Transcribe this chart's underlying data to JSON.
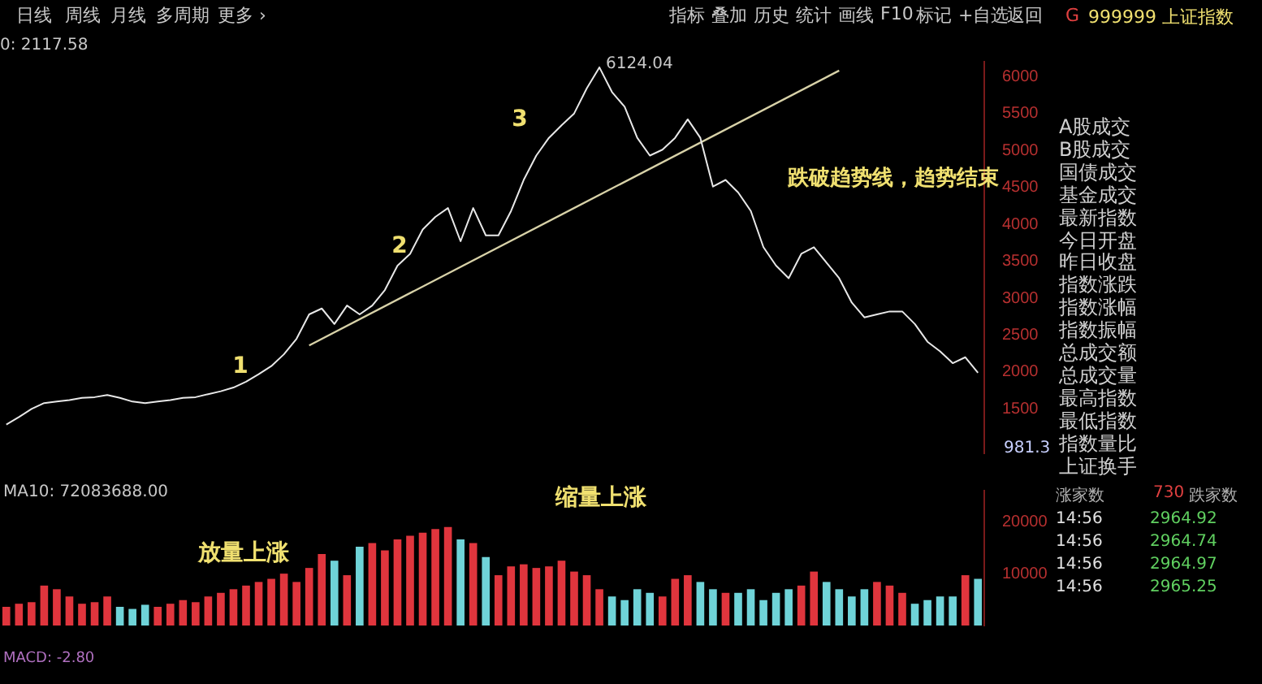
{
  "chart_data": [
    {
      "type": "other",
      "annotations": [
        "日线",
        "周线",
        "月线",
        "多周期",
        "更多 ›",
        "指标",
        "叠加",
        "历史",
        "统计",
        "画线",
        "F10",
        "标记",
        "+自选",
        "返回"
      ]
    },
    {
      "type": "line",
      "categories": [
        null,
        null,
        null,
        null,
        null,
        null,
        null,
        null,
        null,
        null,
        null,
        null,
        null,
        null,
        null,
        null,
        null,
        null,
        null,
        null,
        null,
        null,
        null,
        null,
        null,
        null,
        null,
        null,
        null,
        null,
        null,
        null,
        null,
        null,
        null,
        null,
        null,
        null,
        null,
        null,
        null,
        null,
        null,
        null,
        null,
        null,
        null,
        null,
        null,
        null,
        null,
        null,
        null,
        null,
        null,
        null,
        null,
        null,
        null,
        null,
        null,
        null,
        null,
        null,
        null,
        null,
        null,
        null,
        null,
        null,
        null,
        null,
        null,
        null,
        null,
        null,
        null,
        null
      ],
      "series": [
        {
          "color": "#e8e8e8",
          "values": [
            1290,
            1390,
            1500,
            1580,
            1600,
            1620,
            1650,
            1660,
            1690,
            1650,
            1600,
            1580,
            1600,
            1620,
            1650,
            1660,
            1700,
            1740,
            1790,
            1870,
            1970,
            2080,
            2240,
            2450,
            2780,
            2860,
            2650,
            2900,
            2780,
            2900,
            3110,
            3440,
            3600,
            3930,
            4100,
            4220,
            3770,
            4220,
            3850,
            3850,
            4180,
            4600,
            4930,
            5170,
            5340,
            5500,
            5840,
            6124,
            5790,
            5590,
            5170,
            4930,
            5010,
            5170,
            5420,
            5170,
            4510,
            4600,
            4430,
            4180,
            3690,
            3440,
            3270,
            3600,
            3690,
            3480,
            3270,
            2940,
            2740,
            2780,
            2820,
            2820,
            2650,
            2410,
            2280,
            2120,
            2200,
            1990
          ]
        },
        {
          "type": "line",
          "color": "#d8d2a8",
          "values": [
            null,
            null,
            null,
            null,
            null,
            null,
            null,
            null,
            null,
            null,
            null,
            null,
            null,
            null,
            null,
            null,
            null,
            null,
            null,
            null,
            null,
            null,
            null,
            null,
            2360,
            null,
            null,
            null,
            null,
            null,
            null,
            null,
            null,
            null,
            null,
            null,
            null,
            null,
            null,
            null,
            null,
            null,
            null,
            null,
            null,
            null,
            null,
            null,
            null,
            null,
            null,
            null,
            null,
            null,
            null,
            null,
            null,
            null,
            null,
            null,
            null,
            null,
            null,
            null,
            null,
            null,
            6080,
            null,
            null,
            null,
            null,
            null,
            null,
            null,
            null,
            null,
            null,
            null
          ]
        }
      ],
      "ylim": [
        900,
        6200
      ],
      "yticks": [
        1500,
        2000,
        2500,
        3000,
        3500,
        4000,
        4500,
        5000,
        5500,
        6000
      ],
      "tick_labels": "y",
      "grid": false,
      "legend": false,
      "annotations": [
        "0: 2117.58",
        "6124.04",
        "1",
        "2",
        "3",
        "跌破趋势线，趋势结束",
        "981.3"
      ]
    },
    {
      "type": "bar",
      "categories": [
        null,
        null,
        null,
        null,
        null,
        null,
        null,
        null,
        null,
        null,
        null,
        null,
        null,
        null,
        null,
        null,
        null,
        null,
        null,
        null,
        null,
        null,
        null,
        null,
        null,
        null,
        null,
        null,
        null,
        null,
        null,
        null,
        null,
        null,
        null,
        null,
        null,
        null,
        null,
        null,
        null,
        null,
        null,
        null,
        null,
        null,
        null,
        null,
        null,
        null,
        null,
        null,
        null,
        null,
        null,
        null,
        null,
        null,
        null,
        null,
        null,
        null,
        null,
        null,
        null,
        null,
        null,
        null,
        null,
        null,
        null,
        null,
        null,
        null,
        null,
        null,
        null,
        null
      ],
      "values": [
        3600,
        4200,
        4500,
        7700,
        7000,
        5600,
        4200,
        4500,
        5600,
        3600,
        3200,
        4000,
        3600,
        4200,
        4900,
        4500,
        5600,
        6300,
        7000,
        7700,
        8400,
        9000,
        10000,
        8400,
        11100,
        13800,
        12500,
        9700,
        15200,
        15900,
        14500,
        16600,
        17300,
        17900,
        18600,
        19000,
        16600,
        15900,
        13200,
        9700,
        11400,
        11800,
        11100,
        11400,
        12500,
        10400,
        9700,
        7000,
        5600,
        4900,
        7000,
        6300,
        5600,
        9000,
        9700,
        8400,
        7000,
        6300,
        6300,
        7000,
        4900,
        6300,
        7000,
        7700,
        10400,
        8400,
        7000,
        5600,
        7000,
        8400,
        7700,
        6300,
        4200,
        4900,
        5600,
        5600,
        9700,
        9000
      ],
      "colors": [
        "#e0353d",
        "#e0353d",
        "#e0353d",
        "#e0353d",
        "#e0353d",
        "#e0353d",
        "#e0353d",
        "#e0353d",
        "#e0353d",
        "#6fd3d8",
        "#6fd3d8",
        "#6fd3d8",
        "#e0353d",
        "#e0353d",
        "#e0353d",
        "#e0353d",
        "#e0353d",
        "#e0353d",
        "#e0353d",
        "#e0353d",
        "#e0353d",
        "#e0353d",
        "#e0353d",
        "#e0353d",
        "#e0353d",
        "#e0353d",
        "#6fd3d8",
        "#e0353d",
        "#6fd3d8",
        "#e0353d",
        "#e0353d",
        "#e0353d",
        "#e0353d",
        "#e0353d",
        "#e0353d",
        "#e0353d",
        "#6fd3d8",
        "#e0353d",
        "#6fd3d8",
        "#e0353d",
        "#e0353d",
        "#e0353d",
        "#e0353d",
        "#e0353d",
        "#e0353d",
        "#e0353d",
        "#e0353d",
        "#e0353d",
        "#6fd3d8",
        "#6fd3d8",
        "#6fd3d8",
        "#6fd3d8",
        "#e0353d",
        "#e0353d",
        "#e0353d",
        "#6fd3d8",
        "#6fd3d8",
        "#e0353d",
        "#6fd3d8",
        "#6fd3d8",
        "#6fd3d8",
        "#6fd3d8",
        "#6fd3d8",
        "#e0353d",
        "#e0353d",
        "#6fd3d8",
        "#6fd3d8",
        "#6fd3d8",
        "#6fd3d8",
        "#e0353d",
        "#e0353d",
        "#e0353d",
        "#6fd3d8",
        "#6fd3d8",
        "#6fd3d8",
        "#6fd3d8",
        "#e0353d",
        "#6fd3d8"
      ],
      "ylim": [
        0,
        26000
      ],
      "yticks": [
        10000,
        20000
      ],
      "tick_labels": "y",
      "grid": false,
      "legend": false,
      "annotations": [
        "MA10: 72083688.00",
        "放量上涨",
        "缩量上涨",
        "MACD: -2.80"
      ]
    },
    {
      "type": "other",
      "title": "999999 上证指数",
      "annotations": [
        "G",
        "A股成交",
        "B股成交",
        "国债成交",
        "基金成交",
        "最新指数",
        "今日开盘",
        "昨日收盘",
        "指数涨跌",
        "指数涨幅",
        "指数振幅",
        "总成交额",
        "总成交量",
        "最高指数",
        "最低指数",
        "指数量比",
        "上证换手",
        "涨家数",
        "730",
        "跌家数",
        "14:56",
        "2964.92",
        "14:56",
        "2964.74",
        "14:56",
        "2964.97",
        "14:56",
        "2965.25"
      ]
    }
  ]
}
